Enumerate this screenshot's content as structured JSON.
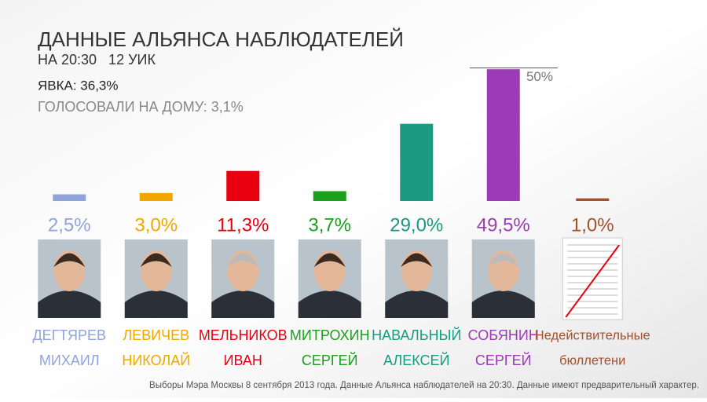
{
  "chart_data": {
    "type": "bar",
    "title": "ДАННЫЕ АЛЬЯНСА НАБЛЮДАТЕЛЕЙ",
    "subtitle": "НА 20:30   12 УИК",
    "annotations": [
      "ЯВКА: 36,3%",
      "ГОЛОСОВАЛИ НА ДОМУ: 3,1%"
    ],
    "footnote": "Выборы Мэра Москвы 8 сентября 2013 года. Данные Альянса наблюдателей на 20:30. Данные имеют предварительный характер.",
    "categories": [
      [
        "ДЕГТЯРЕВ",
        "МИХАИЛ"
      ],
      [
        "ЛЕВИЧЕВ",
        "НИКОЛАЙ"
      ],
      [
        "МЕЛЬНИКОВ",
        "ИВАН"
      ],
      [
        "МИТРОХИН",
        "СЕРГЕЙ"
      ],
      [
        "НАВАЛЬНЫЙ",
        "АЛЕКСЕЙ"
      ],
      [
        "СОБЯНИН",
        "СЕРГЕЙ"
      ],
      [
        "Недействительные",
        "бюллетени"
      ]
    ],
    "values": [
      2.5,
      3.0,
      11.3,
      3.7,
      29.0,
      49.5,
      1.0
    ],
    "value_labels": [
      "2,5%",
      "3,0%",
      "11,3%",
      "3,7%",
      "29,0%",
      "49,5%",
      "1,0%"
    ],
    "colors": [
      "#8fa5d9",
      "#f0a800",
      "#e8000f",
      "#1aa01a",
      "#1a9a80",
      "#9b3bb5",
      "#a0522d"
    ],
    "ylim": [
      0,
      50
    ],
    "reference_line": {
      "value": 50,
      "label": "50%"
    }
  }
}
